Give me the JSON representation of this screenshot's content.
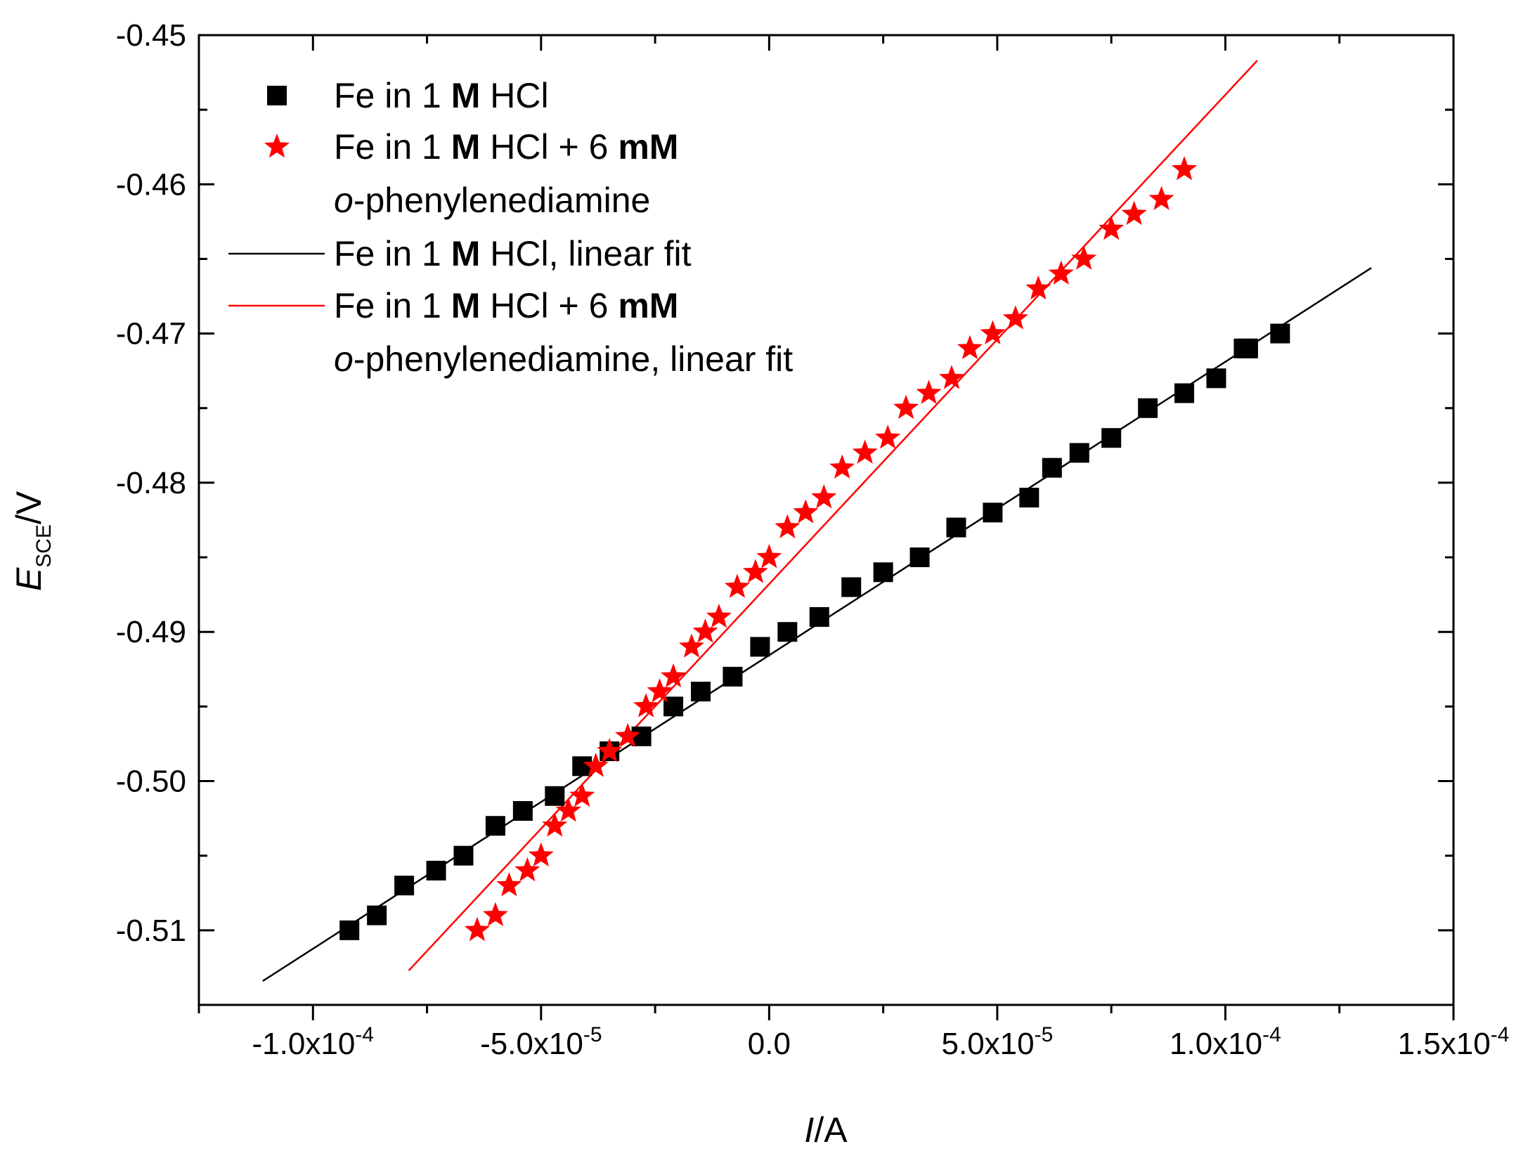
{
  "chart_data": {
    "type": "scatter",
    "xlabel": {
      "italic": "I",
      "rest": "/A"
    },
    "ylabel": {
      "italic": "E",
      "subscript": "SCE",
      "rest": "/V"
    },
    "xlim": [
      -0.000125,
      0.00015
    ],
    "ylim": [
      -0.515,
      -0.45
    ],
    "x_ticks": [
      {
        "value": -0.0001,
        "mantissa": "-1.0x10",
        "exp": "-4"
      },
      {
        "value": -5e-05,
        "mantissa": "-5.0x10",
        "exp": "-5"
      },
      {
        "value": 0.0,
        "mantissa": "0.0",
        "exp": ""
      },
      {
        "value": 5e-05,
        "mantissa": "5.0x10",
        "exp": "-5"
      },
      {
        "value": 0.0001,
        "mantissa": "1.0x10",
        "exp": "-4"
      },
      {
        "value": 0.00015,
        "mantissa": "1.5x10",
        "exp": "-4"
      }
    ],
    "y_ticks": [
      {
        "value": -0.45,
        "label": "-0.45"
      },
      {
        "value": -0.46,
        "label": "-0.46"
      },
      {
        "value": -0.47,
        "label": "-0.47"
      },
      {
        "value": -0.48,
        "label": "-0.48"
      },
      {
        "value": -0.49,
        "label": "-0.49"
      },
      {
        "value": -0.5,
        "label": "-0.50"
      },
      {
        "value": -0.51,
        "label": "-0.51"
      }
    ],
    "series": [
      {
        "name": "Fe in 1 M HCl",
        "marker": "square",
        "color": "#000000",
        "points": [
          [
            -9.2e-05,
            -0.51
          ],
          [
            -8.6e-05,
            -0.509
          ],
          [
            -8e-05,
            -0.507
          ],
          [
            -7.3e-05,
            -0.506
          ],
          [
            -6.7e-05,
            -0.505
          ],
          [
            -6e-05,
            -0.503
          ],
          [
            -5.4e-05,
            -0.502
          ],
          [
            -4.7e-05,
            -0.501
          ],
          [
            -4.1e-05,
            -0.499
          ],
          [
            -3.5e-05,
            -0.498
          ],
          [
            -2.8e-05,
            -0.497
          ],
          [
            -2.1e-05,
            -0.495
          ],
          [
            -1.5e-05,
            -0.494
          ],
          [
            -8e-06,
            -0.493
          ],
          [
            -2e-06,
            -0.491
          ],
          [
            4e-06,
            -0.49
          ],
          [
            1.1e-05,
            -0.489
          ],
          [
            1.8e-05,
            -0.487
          ],
          [
            2.5e-05,
            -0.486
          ],
          [
            3.3e-05,
            -0.485
          ],
          [
            4.1e-05,
            -0.483
          ],
          [
            4.9e-05,
            -0.482
          ],
          [
            5.7e-05,
            -0.481
          ],
          [
            6.2e-05,
            -0.479
          ],
          [
            6.8e-05,
            -0.478
          ],
          [
            7.5e-05,
            -0.477
          ],
          [
            8.3e-05,
            -0.475
          ],
          [
            9.1e-05,
            -0.474
          ],
          [
            9.8e-05,
            -0.473
          ],
          [
            0.000104,
            -0.471
          ],
          [
            0.000105,
            -0.471
          ],
          [
            0.000112,
            -0.47
          ]
        ]
      },
      {
        "name": "Fe in 1 M HCl + 6 mM o-phenylenediamine",
        "marker": "star",
        "color": "#ff0000",
        "points": [
          [
            -6.4e-05,
            -0.51
          ],
          [
            -6e-05,
            -0.509
          ],
          [
            -5.7e-05,
            -0.507
          ],
          [
            -5.3e-05,
            -0.506
          ],
          [
            -5e-05,
            -0.505
          ],
          [
            -4.7e-05,
            -0.503
          ],
          [
            -4.4e-05,
            -0.502
          ],
          [
            -4.1e-05,
            -0.501
          ],
          [
            -3.8e-05,
            -0.499
          ],
          [
            -3.5e-05,
            -0.498
          ],
          [
            -3.1e-05,
            -0.497
          ],
          [
            -2.7e-05,
            -0.495
          ],
          [
            -2.4e-05,
            -0.494
          ],
          [
            -2.1e-05,
            -0.493
          ],
          [
            -1.7e-05,
            -0.491
          ],
          [
            -1.4e-05,
            -0.49
          ],
          [
            -1.1e-05,
            -0.489
          ],
          [
            -7e-06,
            -0.487
          ],
          [
            -3e-06,
            -0.486
          ],
          [
            0.0,
            -0.485
          ],
          [
            4e-06,
            -0.483
          ],
          [
            8e-06,
            -0.482
          ],
          [
            1.2e-05,
            -0.481
          ],
          [
            1.6e-05,
            -0.479
          ],
          [
            2.1e-05,
            -0.478
          ],
          [
            2.6e-05,
            -0.477
          ],
          [
            3e-05,
            -0.475
          ],
          [
            3.5e-05,
            -0.474
          ],
          [
            4e-05,
            -0.473
          ],
          [
            4.4e-05,
            -0.471
          ],
          [
            4.9e-05,
            -0.47
          ],
          [
            5.4e-05,
            -0.469
          ],
          [
            5.9e-05,
            -0.467
          ],
          [
            6.4e-05,
            -0.466
          ],
          [
            6.9e-05,
            -0.465
          ],
          [
            7.5e-05,
            -0.463
          ],
          [
            8e-05,
            -0.462
          ],
          [
            8.6e-05,
            -0.461
          ],
          [
            9.1e-05,
            -0.459
          ]
        ]
      }
    ],
    "fits": [
      {
        "name": "Fe in 1 M HCl, linear fit",
        "color": "#000000",
        "x": [
          -0.000111,
          0.000132
        ],
        "y": [
          -0.5134,
          -0.4656
        ]
      },
      {
        "name": "Fe in 1 M HCl + 6 mM o-phenylenediamine, linear fit",
        "color": "#ff0000",
        "x": [
          -7.9e-05,
          0.000107
        ],
        "y": [
          -0.5127,
          -0.4517
        ]
      }
    ],
    "legend": {
      "position": "top-left",
      "entries": [
        {
          "symbol": "square",
          "color": "#000000",
          "lines": [
            [
              {
                "t": "Fe in 1 "
              },
              {
                "t": "M",
                "b": true
              },
              {
                "t": " HCl"
              }
            ]
          ]
        },
        {
          "symbol": "star",
          "color": "#ff0000",
          "lines": [
            [
              {
                "t": "Fe in 1 "
              },
              {
                "t": "M",
                "b": true
              },
              {
                "t": " HCl + 6 "
              },
              {
                "t": "mM",
                "b": true
              }
            ],
            [
              {
                "t": "o",
                "i": true
              },
              {
                "t": "-phenylenediamine"
              }
            ]
          ]
        },
        {
          "symbol": "line",
          "color": "#000000",
          "lines": [
            [
              {
                "t": "Fe in 1 "
              },
              {
                "t": "M",
                "b": true
              },
              {
                "t": " HCl, linear fit"
              }
            ]
          ]
        },
        {
          "symbol": "line",
          "color": "#ff0000",
          "lines": [
            [
              {
                "t": "Fe in 1 "
              },
              {
                "t": "M",
                "b": true
              },
              {
                "t": " HCl + 6 "
              },
              {
                "t": "mM",
                "b": true
              }
            ],
            [
              {
                "t": "o",
                "i": true
              },
              {
                "t": "-phenylenediamine, linear fit"
              }
            ]
          ]
        }
      ]
    }
  }
}
